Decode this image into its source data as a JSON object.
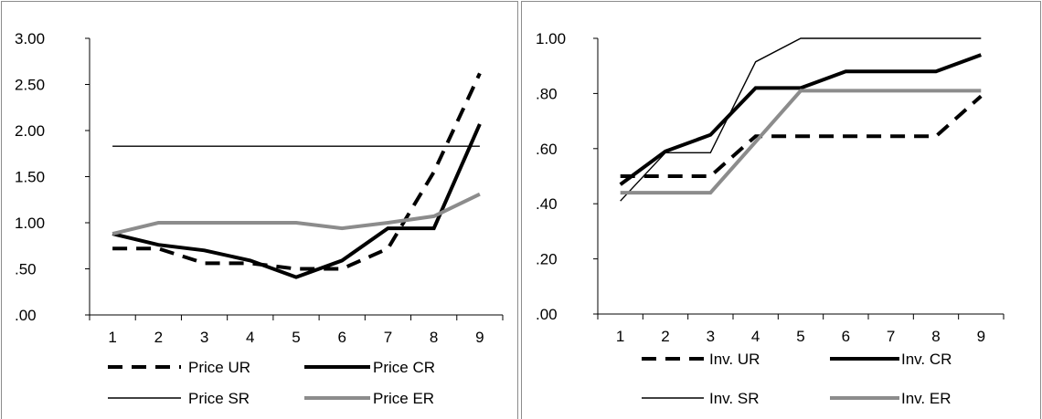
{
  "colors": {
    "black": "#000000",
    "gray": "#8c8c8c",
    "frame": "#8c8c8c"
  },
  "chart_data": [
    {
      "type": "line",
      "categories": [
        "1",
        "2",
        "3",
        "4",
        "5",
        "6",
        "7",
        "8",
        "9"
      ],
      "y_tick_labels": [
        "3.00",
        "2.50",
        "2.00",
        "1.50",
        "1.00",
        ".50",
        ".00"
      ],
      "ylim": [
        0,
        3
      ],
      "y_ticks": [
        0,
        0.5,
        1,
        1.5,
        2,
        2.5,
        3
      ],
      "grid": false,
      "legend_position": "bottom",
      "title": "",
      "xlabel": "",
      "ylabel": "",
      "series": [
        {
          "name": "Price UR",
          "style": "dashed-thick",
          "color": "#000000",
          "values": [
            0.72,
            0.72,
            0.56,
            0.56,
            0.5,
            0.5,
            0.72,
            1.55,
            2.62
          ]
        },
        {
          "name": "Price CR",
          "style": "solid-thick",
          "color": "#000000",
          "values": [
            0.88,
            0.76,
            0.7,
            0.59,
            0.41,
            0.59,
            0.94,
            0.94,
            2.07
          ]
        },
        {
          "name": "Price SR",
          "style": "solid-thin",
          "color": "#000000",
          "values": [
            1.83,
            1.83,
            1.83,
            1.83,
            1.83,
            1.83,
            1.83,
            1.83,
            1.83
          ]
        },
        {
          "name": "Price ER",
          "style": "solid-gray",
          "color": "#8c8c8c",
          "values": [
            0.88,
            1.0,
            1.0,
            1.0,
            1.0,
            0.94,
            1.0,
            1.07,
            1.31
          ]
        }
      ]
    },
    {
      "type": "line",
      "categories": [
        "1",
        "2",
        "3",
        "4",
        "5",
        "6",
        "7",
        "8",
        "9"
      ],
      "y_tick_labels": [
        "1.00",
        ".80",
        ".60",
        ".40",
        ".20",
        ".00"
      ],
      "ylim": [
        0,
        1
      ],
      "y_ticks": [
        0,
        0.2,
        0.4,
        0.6,
        0.8,
        1.0
      ],
      "grid": false,
      "legend_position": "bottom",
      "title": "",
      "xlabel": "",
      "ylabel": "",
      "series": [
        {
          "name": "Inv. UR",
          "style": "dashed-thick",
          "color": "#000000",
          "values": [
            0.5,
            0.5,
            0.5,
            0.645,
            0.645,
            0.645,
            0.645,
            0.645,
            0.79
          ]
        },
        {
          "name": "Inv. CR",
          "style": "solid-thick",
          "color": "#000000",
          "values": [
            0.47,
            0.59,
            0.65,
            0.82,
            0.82,
            0.88,
            0.88,
            0.88,
            0.94
          ]
        },
        {
          "name": "Inv. SR",
          "style": "solid-thin",
          "color": "#000000",
          "values": [
            0.41,
            0.585,
            0.585,
            0.915,
            1.0,
            1.0,
            1.0,
            1.0,
            1.0
          ]
        },
        {
          "name": "Inv. ER",
          "style": "solid-gray",
          "color": "#8c8c8c",
          "values": [
            0.44,
            0.44,
            0.44,
            0.625,
            0.81,
            0.81,
            0.81,
            0.81,
            0.81
          ]
        }
      ]
    }
  ]
}
